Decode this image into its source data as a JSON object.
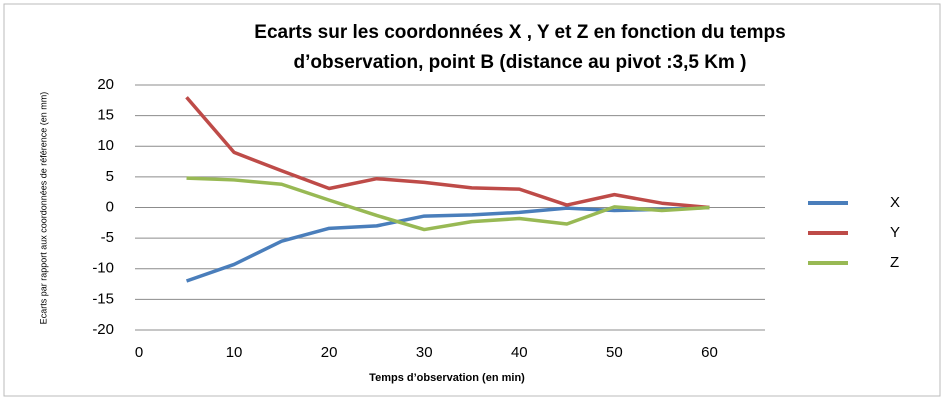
{
  "chart_data": {
    "type": "line",
    "title": [
      "Ecarts sur les coordonnées X , Y et  Z en fonction du temps",
      "d’observation, point B (distance au pivot :3,5 Km )"
    ],
    "x_label": "Temps d’observation (en min)",
    "y_label": "Ecarts par rapport aux coordonnées de référence (en mm)",
    "x": [
      5,
      10,
      15,
      20,
      25,
      30,
      35,
      40,
      45,
      50,
      55,
      60
    ],
    "series": [
      {
        "name": "X",
        "color": "#4a7ebb",
        "values": [
          -12,
          -9.3,
          -5.5,
          -3.4,
          -3,
          -1.4,
          -1.2,
          -0.8,
          -0.1,
          -0.5,
          -0.3,
          0
        ]
      },
      {
        "name": "Y",
        "color": "#be4b48",
        "values": [
          18,
          9,
          6,
          3.1,
          4.7,
          4.1,
          3.2,
          3,
          0.4,
          2.1,
          0.7,
          0
        ]
      },
      {
        "name": "Z",
        "color": "#98b954",
        "values": [
          4.8,
          4.5,
          3.8,
          1.2,
          -1.3,
          -3.6,
          -2.3,
          -1.8,
          -2.7,
          0.1,
          -0.5,
          0
        ]
      }
    ],
    "xlim": [
      0,
      65
    ],
    "xticks": [
      0,
      10,
      20,
      30,
      40,
      50,
      60
    ],
    "ylim": [
      -20,
      20
    ],
    "yticks": [
      -20,
      -15,
      -10,
      -5,
      0,
      5,
      10,
      15,
      20
    ],
    "grid": true,
    "legend": "right"
  }
}
